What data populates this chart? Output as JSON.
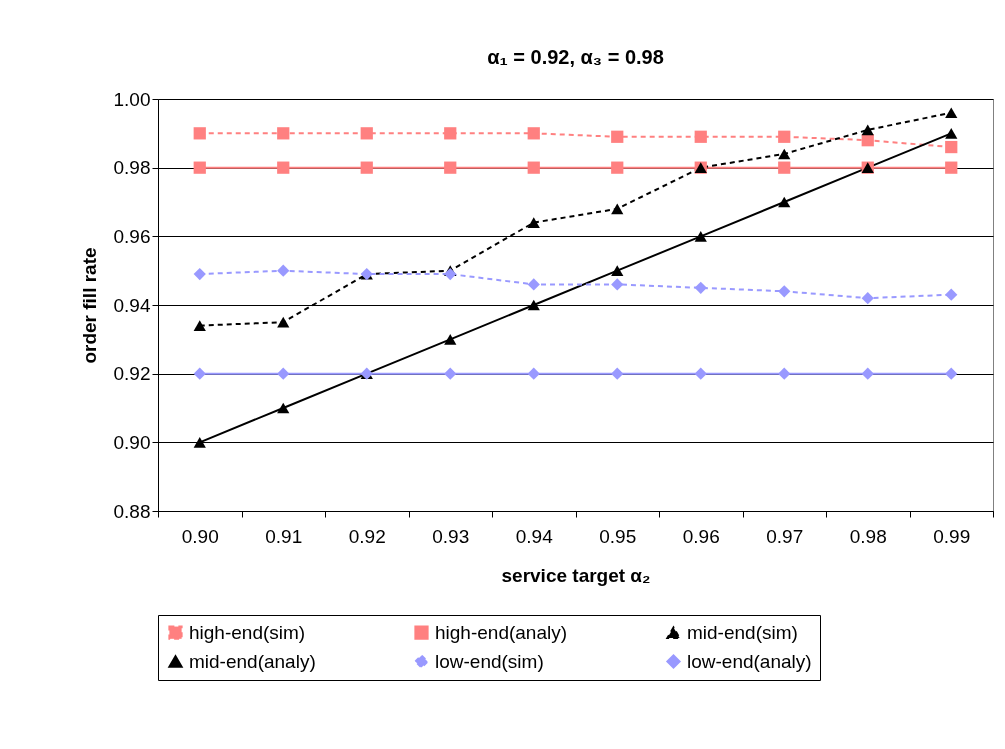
{
  "chart_data": {
    "type": "line",
    "title": "α₁ = 0.92, α₃ = 0.98",
    "xlabel": "service target α₂",
    "ylabel": "order fill rate",
    "categories": [
      "0.90",
      "0.91",
      "0.92",
      "0.93",
      "0.94",
      "0.95",
      "0.96",
      "0.97",
      "0.98",
      "0.99"
    ],
    "series": [
      {
        "name": "high-end(sim)",
        "color": "#ff8080",
        "marker": "square",
        "line_style": "dashed",
        "values": [
          0.99,
          0.99,
          0.99,
          0.99,
          0.99,
          0.989,
          0.989,
          0.989,
          0.988,
          0.986
        ]
      },
      {
        "name": "high-end(analy)",
        "color": "#ff8080",
        "marker": "square",
        "line_style": "solid",
        "values": [
          0.98,
          0.98,
          0.98,
          0.98,
          0.98,
          0.98,
          0.98,
          0.98,
          0.98,
          0.98
        ]
      },
      {
        "name": "mid-end(sim)",
        "color": "#000000",
        "marker": "triangle",
        "line_style": "dashed",
        "values": [
          0.934,
          0.935,
          0.949,
          0.95,
          0.964,
          0.968,
          0.98,
          0.984,
          0.991,
          0.996
        ]
      },
      {
        "name": "mid-end(analy)",
        "color": "#000000",
        "marker": "triangle",
        "line_style": "solid",
        "values": [
          0.9,
          0.91,
          0.92,
          0.93,
          0.94,
          0.95,
          0.96,
          0.97,
          0.98,
          0.99
        ]
      },
      {
        "name": "low-end(sim)",
        "color": "#9999ff",
        "marker": "diamond",
        "line_style": "dashed",
        "values": [
          0.949,
          0.95,
          0.949,
          0.949,
          0.946,
          0.946,
          0.945,
          0.944,
          0.942,
          0.943
        ]
      },
      {
        "name": "low-end(analy)",
        "color": "#9999ff",
        "marker": "diamond",
        "line_style": "solid",
        "values": [
          0.92,
          0.92,
          0.92,
          0.92,
          0.92,
          0.92,
          0.92,
          0.92,
          0.92,
          0.92
        ]
      }
    ],
    "ylim": [
      0.88,
      1.0
    ],
    "yticks": [
      {
        "value": 0.88,
        "label": "0.88"
      },
      {
        "value": 0.9,
        "label": "0.90"
      },
      {
        "value": 0.92,
        "label": "0.92"
      },
      {
        "value": 0.94,
        "label": "0.94"
      },
      {
        "value": 0.96,
        "label": "0.96"
      },
      {
        "value": 0.98,
        "label": "0.98"
      },
      {
        "value": 1.0,
        "label": "1.00"
      }
    ],
    "grid": "y",
    "legend": "bottom"
  }
}
